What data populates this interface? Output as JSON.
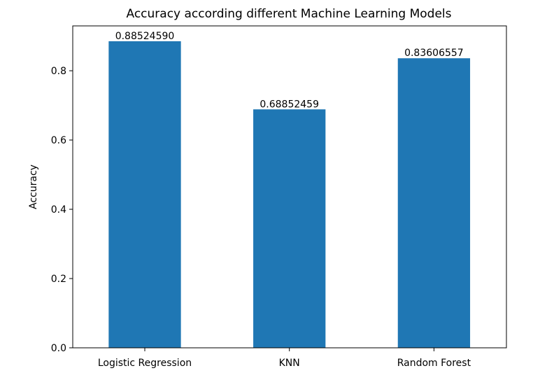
{
  "chart_data": {
    "type": "bar",
    "title": "Accuracy according different Machine Learning Models",
    "xlabel": "",
    "ylabel": "Accuracy",
    "categories": [
      "Logistic Regression",
      "KNN",
      "Random Forest"
    ],
    "values": [
      0.8852459,
      0.68852459,
      0.83606557
    ],
    "value_labels": [
      "0.88524590",
      "0.68852459",
      "0.83606557"
    ],
    "ylim": [
      0,
      0.9295
    ],
    "yticks": [
      0.0,
      0.2,
      0.4,
      0.6,
      0.8
    ],
    "ytick_labels": [
      "0.0",
      "0.2",
      "0.4",
      "0.6",
      "0.8"
    ],
    "bar_color": "#1f77b4",
    "grid": false,
    "legend": "none"
  }
}
